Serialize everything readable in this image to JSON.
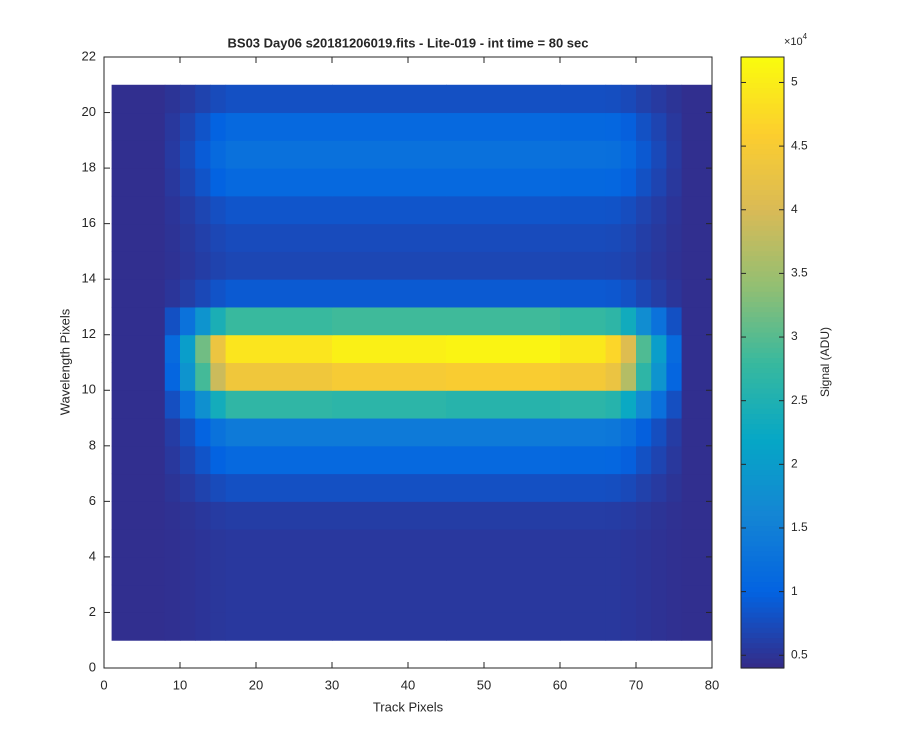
{
  "chart_data": {
    "type": "heatmap",
    "title": "BS03 Day06  s20181206019.fits - Lite-019 - int time = 80 sec",
    "xlabel": "Track Pixels",
    "ylabel": "Wavelength Pixels",
    "x_edges": [
      1,
      8,
      10,
      12,
      14,
      16,
      30,
      45,
      60,
      66,
      68,
      70,
      72,
      74,
      76,
      80
    ],
    "y_edges": [
      1,
      2,
      3,
      4,
      5,
      6,
      7,
      8,
      9,
      10,
      11,
      12,
      13,
      14,
      15,
      16,
      17,
      18,
      19,
      20,
      21
    ],
    "values": [
      [
        4500,
        4650,
        4850,
        5100,
        5350,
        5500,
        5500,
        5500,
        5480,
        5450,
        5300,
        5050,
        4850,
        4650,
        4500
      ],
      [
        4500,
        4650,
        4850,
        5100,
        5350,
        5500,
        5500,
        5500,
        5480,
        5450,
        5300,
        5050,
        4850,
        4650,
        4500
      ],
      [
        4500,
        4650,
        4850,
        5100,
        5350,
        5500,
        5500,
        5500,
        5480,
        5450,
        5300,
        5050,
        4850,
        4650,
        4500
      ],
      [
        4500,
        4650,
        4850,
        5100,
        5350,
        5500,
        5500,
        5500,
        5480,
        5450,
        5300,
        5050,
        4850,
        4650,
        4500
      ],
      [
        4500,
        4730,
        5030,
        5400,
        5780,
        6000,
        6000,
        6000,
        5970,
        5930,
        5700,
        5330,
        5030,
        4730,
        4500
      ],
      [
        4500,
        5030,
        5730,
        6600,
        7480,
        8000,
        8000,
        8000,
        7930,
        7830,
        7300,
        6430,
        5730,
        5030,
        4500
      ],
      [
        4500,
        5480,
        6780,
        8400,
        10030,
        11000,
        11000,
        11000,
        10870,
        10680,
        9700,
        8080,
        6780,
        5480,
        4500
      ],
      [
        4500,
        5930,
        7830,
        10200,
        12580,
        14000,
        14000,
        14000,
        13810,
        13530,
        12100,
        9730,
        7830,
        5930,
        4500
      ],
      [
        4500,
        7880,
        12380,
        18000,
        23630,
        27000,
        26500,
        26000,
        26550,
        25880,
        22500,
        16880,
        12380,
        7880,
        4500
      ],
      [
        4500,
        10580,
        18680,
        28800,
        38930,
        44000,
        45000,
        45500,
        44600,
        43000,
        36900,
        26780,
        18680,
        10580,
        4500
      ],
      [
        4500,
        11330,
        20430,
        31800,
        43180,
        49000,
        50500,
        51000,
        49500,
        47000,
        40900,
        29530,
        20430,
        11330,
        4500
      ],
      [
        4500,
        8030,
        12730,
        18600,
        24480,
        28000,
        28500,
        28500,
        27500,
        26800,
        23300,
        17430,
        12730,
        8030,
        4500
      ],
      [
        4500,
        5180,
        6080,
        7200,
        8330,
        9000,
        9000,
        9000,
        8910,
        8780,
        8100,
        6980,
        6080,
        5180,
        4500
      ],
      [
        4500,
        4880,
        5380,
        6000,
        6630,
        7000,
        7000,
        7000,
        6950,
        6880,
        6500,
        5880,
        5380,
        4880,
        4500
      ],
      [
        4500,
        4950,
        5550,
        6300,
        7050,
        7500,
        7500,
        7500,
        7440,
        7350,
        6900,
        6150,
        5550,
        4950,
        4500
      ],
      [
        4500,
        5100,
        5900,
        6900,
        7900,
        8500,
        8500,
        8500,
        8420,
        8300,
        7700,
        6700,
        5900,
        5100,
        4500
      ],
      [
        4500,
        5480,
        6780,
        8400,
        10030,
        11000,
        11000,
        11000,
        10870,
        10680,
        9700,
        8080,
        6780,
        5480,
        4500
      ],
      [
        4500,
        5700,
        7300,
        9300,
        11300,
        12500,
        12500,
        12500,
        12340,
        12100,
        10900,
        8900,
        7300,
        5700,
        4500
      ],
      [
        4500,
        5480,
        6780,
        8400,
        10030,
        11000,
        11000,
        11000,
        10870,
        10680,
        9700,
        8080,
        6780,
        5480,
        4500
      ],
      [
        4500,
        5030,
        5730,
        6600,
        7480,
        8000,
        8000,
        8000,
        7930,
        7830,
        7300,
        6430,
        5730,
        5030,
        4500
      ]
    ],
    "xlim": [
      0,
      80
    ],
    "xticks": [
      0,
      10,
      20,
      30,
      40,
      50,
      60,
      70,
      80
    ],
    "ylim": [
      0,
      22
    ],
    "yticks": [
      0,
      2,
      4,
      6,
      8,
      10,
      12,
      14,
      16,
      18,
      20,
      22
    ],
    "clim": [
      4000,
      52000
    ],
    "cticks": [
      {
        "value": 5000,
        "label": "0.5"
      },
      {
        "value": 10000,
        "label": "1"
      },
      {
        "value": 15000,
        "label": "1.5"
      },
      {
        "value": 20000,
        "label": "2"
      },
      {
        "value": 25000,
        "label": "2.5"
      },
      {
        "value": 30000,
        "label": "3"
      },
      {
        "value": 35000,
        "label": "3.5"
      },
      {
        "value": 40000,
        "label": "4"
      },
      {
        "value": 45000,
        "label": "4.5"
      },
      {
        "value": 50000,
        "label": "5"
      }
    ],
    "colorbar_label": "Signal (ADU)",
    "colorbar_multiplier": {
      "base": "×10",
      "exponent": "4"
    },
    "colormap": [
      "#352a87",
      "#0363e1",
      "#1485d4",
      "#06a7c6",
      "#38b99e",
      "#92bf73",
      "#d9ba56",
      "#fcce2e",
      "#f9fb0e"
    ]
  }
}
